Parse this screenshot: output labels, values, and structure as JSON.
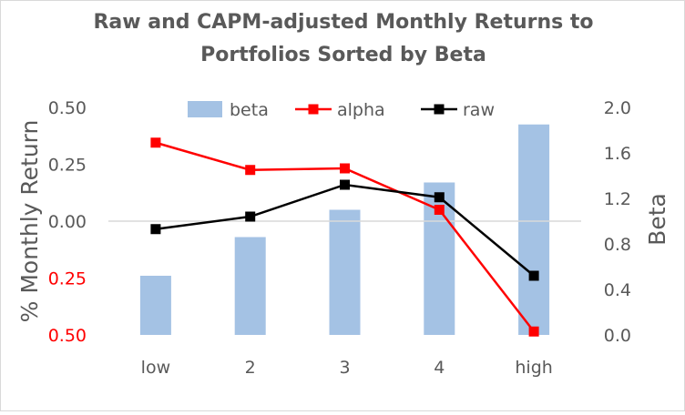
{
  "chart_data": {
    "type": "bar+line",
    "title_lines": [
      "Raw and CAPM-adjusted Monthly Returns to",
      "Portfolios Sorted by Beta"
    ],
    "categories": [
      "low",
      "2",
      "3",
      "4",
      "high"
    ],
    "series": [
      {
        "name": "beta",
        "kind": "bar",
        "axis": "right",
        "color": "#a4c2e4",
        "values": [
          0.52,
          0.86,
          1.1,
          1.34,
          1.85
        ]
      },
      {
        "name": "alpha",
        "kind": "line",
        "axis": "left",
        "color": "#ff0000",
        "values": [
          0.345,
          0.225,
          0.232,
          0.05,
          -0.485
        ]
      },
      {
        "name": "raw",
        "kind": "line",
        "axis": "left",
        "color": "#000000",
        "values": [
          -0.035,
          0.02,
          0.16,
          0.105,
          -0.24
        ]
      }
    ],
    "y_left": {
      "label": "% Monthly Return",
      "range": [
        -0.5,
        0.5
      ],
      "ticks": [
        {
          "value": 0.5,
          "label": "0.50"
        },
        {
          "value": 0.25,
          "label": "0.25"
        },
        {
          "value": 0.0,
          "label": "0.00"
        },
        {
          "value": -0.25,
          "label": "0.25"
        },
        {
          "value": -0.5,
          "label": "0.50"
        }
      ]
    },
    "y_right": {
      "label": "Beta",
      "range": [
        0.0,
        2.0
      ],
      "ticks": [
        {
          "value": 2.0,
          "label": "2.0"
        },
        {
          "value": 1.6,
          "label": "1.6"
        },
        {
          "value": 1.2,
          "label": "1.2"
        },
        {
          "value": 0.8,
          "label": "0.8"
        },
        {
          "value": 0.4,
          "label": "0.4"
        },
        {
          "value": 0.0,
          "label": "0.0"
        }
      ]
    },
    "negative_tick_color": "#ff0000",
    "zero_line": true,
    "grid": false,
    "legend": {
      "position": "top",
      "entries": [
        "beta",
        "alpha",
        "raw"
      ]
    }
  }
}
